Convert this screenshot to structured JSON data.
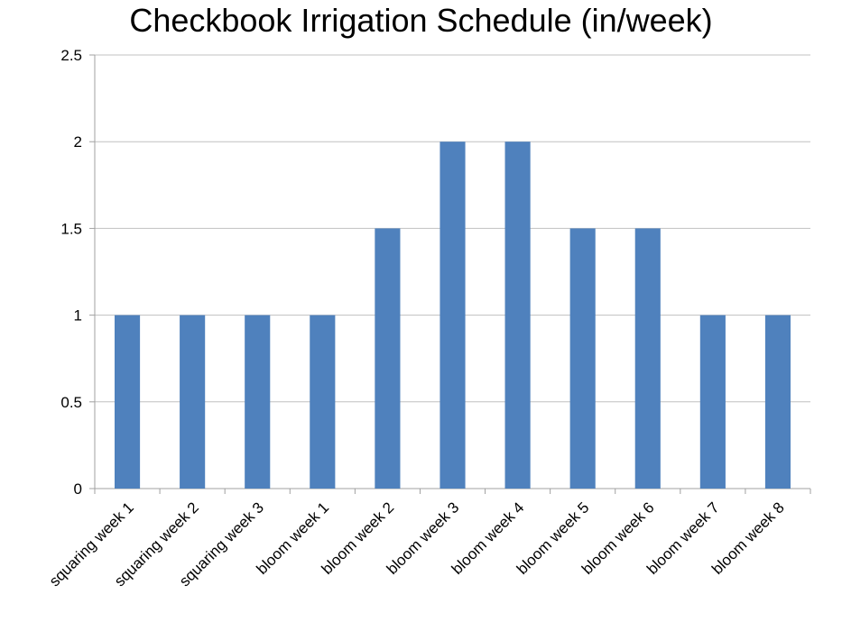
{
  "chart_data": {
    "type": "bar",
    "title": "Checkbook Irrigation Schedule (in/week)",
    "xlabel": "",
    "ylabel": "",
    "categories": [
      "squaring week 1",
      "squaring week 2",
      "squaring week 3",
      "bloom week 1",
      "bloom week 2",
      "bloom week 3",
      "bloom week 4",
      "bloom week 5",
      "bloom week 6",
      "bloom week 7",
      "bloom week 8"
    ],
    "values": [
      1,
      1,
      1,
      1,
      1.5,
      2,
      2,
      1.5,
      1.5,
      1,
      1
    ],
    "ylim": [
      0,
      2.5
    ],
    "yticks": [
      "0",
      "0.5",
      "1",
      "1.5",
      "2",
      "2.5"
    ],
    "grid": true,
    "legend": "none",
    "bar_color": "#4f81bd",
    "grid_color": "#c0c0c0",
    "axis_color": "#a0a0a0"
  }
}
